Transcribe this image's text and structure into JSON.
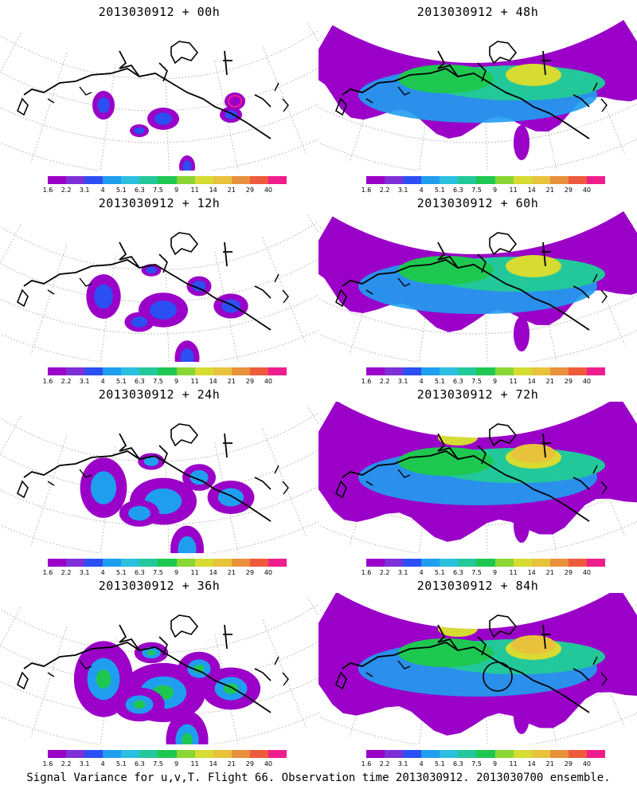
{
  "panels": [
    {
      "title": "2013030912 + 00h",
      "level": 0
    },
    {
      "title": "2013030912 + 48h",
      "level": 4
    },
    {
      "title": "2013030912 + 12h",
      "level": 1
    },
    {
      "title": "2013030912 + 60h",
      "level": 5
    },
    {
      "title": "2013030912 + 24h",
      "level": 2
    },
    {
      "title": "2013030912 + 72h",
      "level": 6
    },
    {
      "title": "2013030912 + 36h",
      "level": 3
    },
    {
      "title": "2013030912 + 84h",
      "level": 7
    }
  ],
  "colorbar": {
    "colors": [
      "#9a00c8",
      "#7f2fd6",
      "#2b4ff2",
      "#1f9ef0",
      "#2bbfe0",
      "#22c89a",
      "#1ec850",
      "#8ad632",
      "#d6dc32",
      "#e8c23a",
      "#e8903c",
      "#ef5a3c",
      "#f01e8c"
    ],
    "labels": [
      "1.6",
      "2.2",
      "3.1",
      "4",
      "5.1",
      "6.3",
      "7.5",
      "9",
      "11",
      "14",
      "21",
      "29",
      "40"
    ]
  },
  "footer": "Signal Variance for u,v,T. Flight 66. Observation time 2013030912. 2013030700 ensemble."
}
